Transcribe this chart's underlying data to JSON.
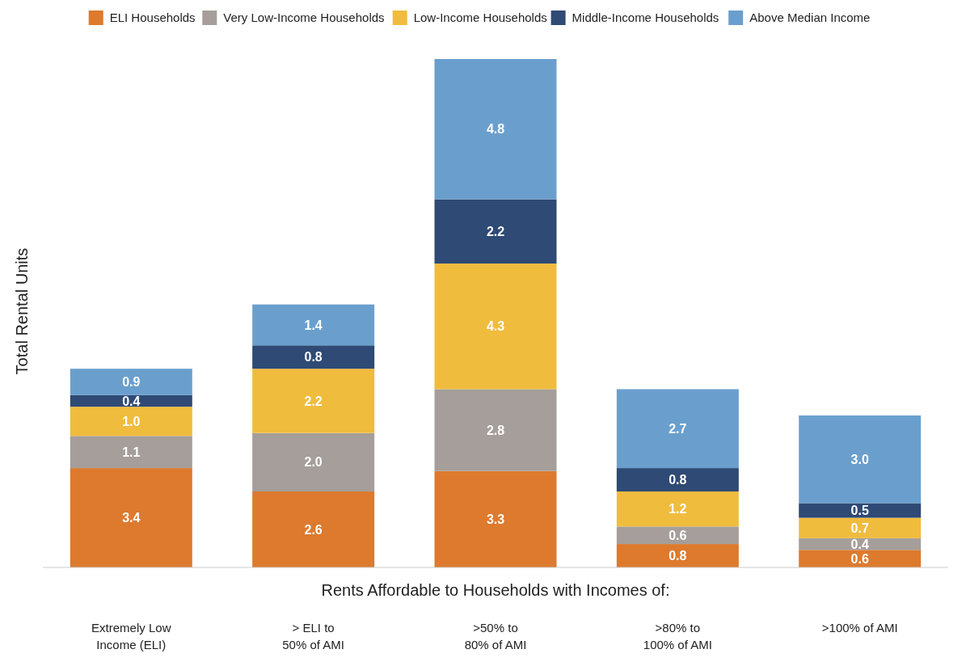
{
  "chart_data": {
    "type": "bar",
    "stacked": true,
    "legend": "top",
    "xlabel": "Rents Affordable to Households with Incomes of:",
    "ylabel": "Total Rental Units",
    "categories": [
      "Extremely Low\nIncome (ELI)",
      "> ELI to\n50% of AMI",
      ">50% to\n80% of AMI",
      ">80% to\n100% of AMI",
      ">100% of AMI"
    ],
    "series": [
      {
        "name": "ELI Households",
        "color": "#dd7a2e",
        "values": [
          3.4,
          2.6,
          3.3,
          0.8,
          0.6
        ],
        "value_labels": [
          "3.4",
          "2.6",
          "3.3",
          "0.8",
          "0.6"
        ]
      },
      {
        "name": "Very Low-Income Households",
        "color": "#a59e9a",
        "values": [
          1.1,
          2.0,
          2.8,
          0.6,
          0.4
        ],
        "value_labels": [
          "1.1",
          "2.0",
          "2.8",
          "0.6",
          "0.4"
        ]
      },
      {
        "name": "Low-Income Households",
        "color": "#f0bc3e",
        "values": [
          1.0,
          2.2,
          4.3,
          1.2,
          0.7
        ],
        "value_labels": [
          "1.0",
          "2.2",
          "4.3",
          "1.2",
          "0.7"
        ]
      },
      {
        "name": "Middle-Income Households",
        "color": "#2e4a75",
        "values": [
          0.4,
          0.8,
          2.2,
          0.8,
          0.5
        ],
        "value_labels": [
          "0.4",
          "0.8",
          "2.2",
          "0.8",
          "0.5"
        ]
      },
      {
        "name": "Above Median Income",
        "color": "#6a9fcd",
        "values": [
          0.9,
          1.4,
          4.8,
          2.7,
          3.0
        ],
        "value_labels": [
          "0.9",
          "1.4",
          "4.8",
          "2.7",
          "3.0"
        ]
      }
    ]
  }
}
